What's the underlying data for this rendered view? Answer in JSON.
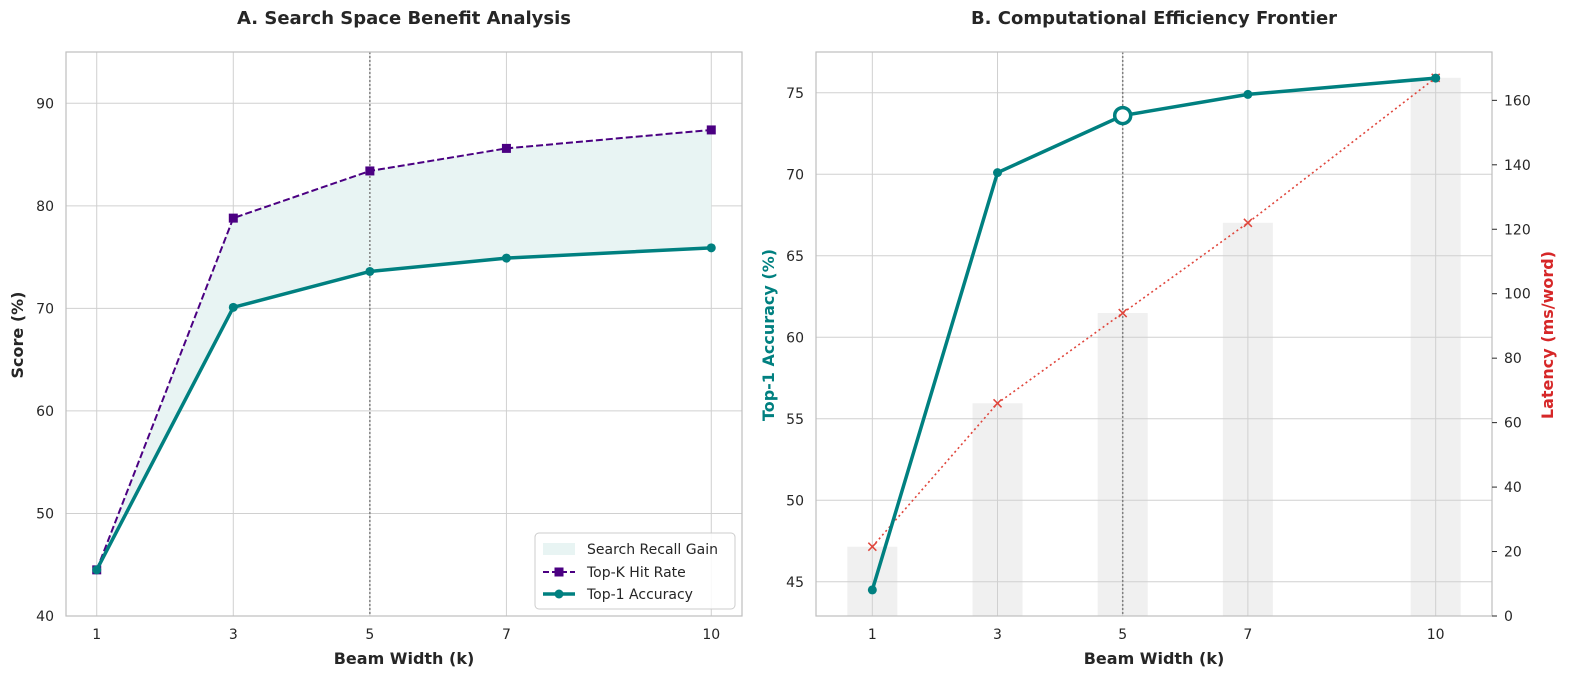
{
  "colors": {
    "teal": "#008080",
    "purple": "#4b0082",
    "red": "#e0463c",
    "redAxis": "#d62728",
    "fill": "#e8f4f3",
    "bar": "#ebebeb",
    "grid": "#d0d0d0",
    "spine": "#bfbfbf",
    "vline": "#808080"
  },
  "chart_data": [
    {
      "type": "line",
      "title": "A. Search Space Benefit Analysis",
      "xlabel": "Beam Width (k)",
      "ylabel": "Score (%)",
      "x": [
        1,
        3,
        5,
        7,
        10
      ],
      "xticks": [
        "1",
        "3",
        "5",
        "7",
        "10"
      ],
      "xlim": [
        0.55,
        10.45
      ],
      "ylim": [
        40,
        95
      ],
      "yticks": [
        40,
        50,
        60,
        70,
        80,
        90
      ],
      "grid": true,
      "vline_x": 5,
      "series": [
        {
          "name": "Top-K Hit Rate",
          "style": "dashed",
          "marker": "square",
          "values": [
            44.5,
            78.8,
            83.4,
            85.6,
            87.4
          ]
        },
        {
          "name": "Top-1 Accuracy",
          "style": "solid",
          "marker": "circle",
          "values": [
            44.5,
            70.1,
            73.6,
            74.9,
            75.9
          ]
        }
      ],
      "fill_between": {
        "name": "Search Recall Gain",
        "upper": "Top-K Hit Rate",
        "lower": "Top-1 Accuracy"
      },
      "legend": {
        "position": "lower-right",
        "items": [
          "Search Recall Gain",
          "Top-K Hit Rate",
          "Top-1 Accuracy"
        ]
      }
    },
    {
      "type": "line",
      "title": "B. Computational Efficiency Frontier",
      "xlabel": "Beam Width (k)",
      "ylabel": "Top-1 Accuracy (%)",
      "y2label": "Latency (ms/word)",
      "x": [
        1,
        3,
        5,
        7,
        10
      ],
      "xticks": [
        "1",
        "3",
        "5",
        "7",
        "10"
      ],
      "xlim": [
        0.1,
        10.9
      ],
      "ylim": [
        42.9,
        77.5
      ],
      "yticks": [
        45,
        50,
        55,
        60,
        65,
        70,
        75
      ],
      "y2lim": [
        0,
        175
      ],
      "y2ticks": [
        0,
        20,
        40,
        60,
        80,
        100,
        120,
        140,
        160
      ],
      "grid": true,
      "vline_x": 5,
      "highlight_x": 5,
      "accuracy": [
        44.5,
        70.1,
        73.6,
        74.9,
        75.9
      ],
      "latency_line": [
        21.5,
        66,
        94,
        122,
        167
      ],
      "latency_bars": [
        21.5,
        66,
        94,
        122,
        167
      ]
    }
  ]
}
